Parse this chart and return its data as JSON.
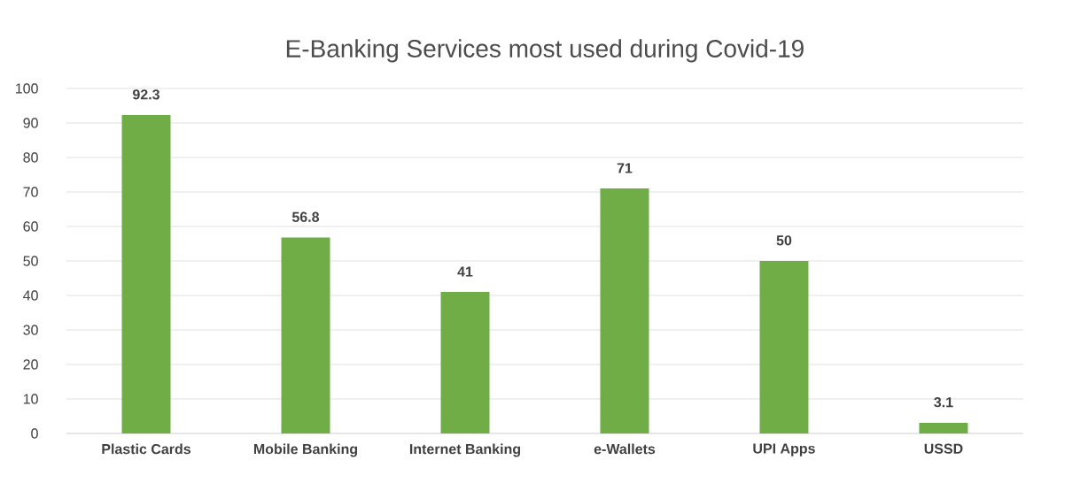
{
  "chart_data": {
    "type": "bar",
    "title": "E-Banking Services most used during Covid-19",
    "categories": [
      "Plastic Cards",
      "Mobile Banking",
      "Internet Banking",
      "e-Wallets",
      "UPI Apps",
      "USSD"
    ],
    "values": [
      92.3,
      56.8,
      41,
      71,
      50,
      3.1
    ],
    "value_labels": [
      "92.3",
      "56.8",
      "41",
      "71",
      "50",
      "3.1"
    ],
    "color": "#70ad47",
    "ylim": [
      0,
      100
    ],
    "yticks": [
      0,
      10,
      20,
      30,
      40,
      50,
      60,
      70,
      80,
      90,
      100
    ],
    "grid": "y"
  }
}
